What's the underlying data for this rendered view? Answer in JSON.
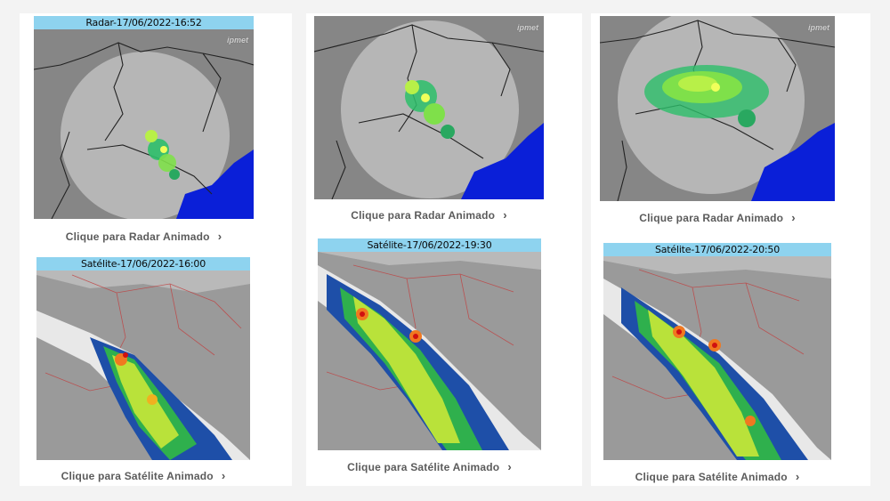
{
  "radar": [
    {
      "title": "Radar-17/06/2022-16:52",
      "caption": "Clique para Radar Animado",
      "logo": "ipmet"
    },
    {
      "title": "",
      "caption": "Clique para Radar Animado",
      "logo": "ipmet"
    },
    {
      "title": "",
      "caption": "Clique para Radar Animado",
      "logo": "ipmet"
    }
  ],
  "satellite": [
    {
      "title": "Satélite-17/06/2022-16:00",
      "caption": "Clique para Satélite Animado"
    },
    {
      "title": "Satélite-17/06/2022-19:30",
      "caption": "Clique para Satélite Animado"
    },
    {
      "title": "Satélite-17/06/2022-20:50",
      "caption": "Clique para Satélite Animado"
    }
  ],
  "icons": {
    "caption_arrow": "chevron-right-icon"
  },
  "colors": {
    "title_bar": "#8ed3ef",
    "ocean": "#0a1fd8",
    "land": "#8a8a8a",
    "radar_range": "#c8c8c8"
  }
}
